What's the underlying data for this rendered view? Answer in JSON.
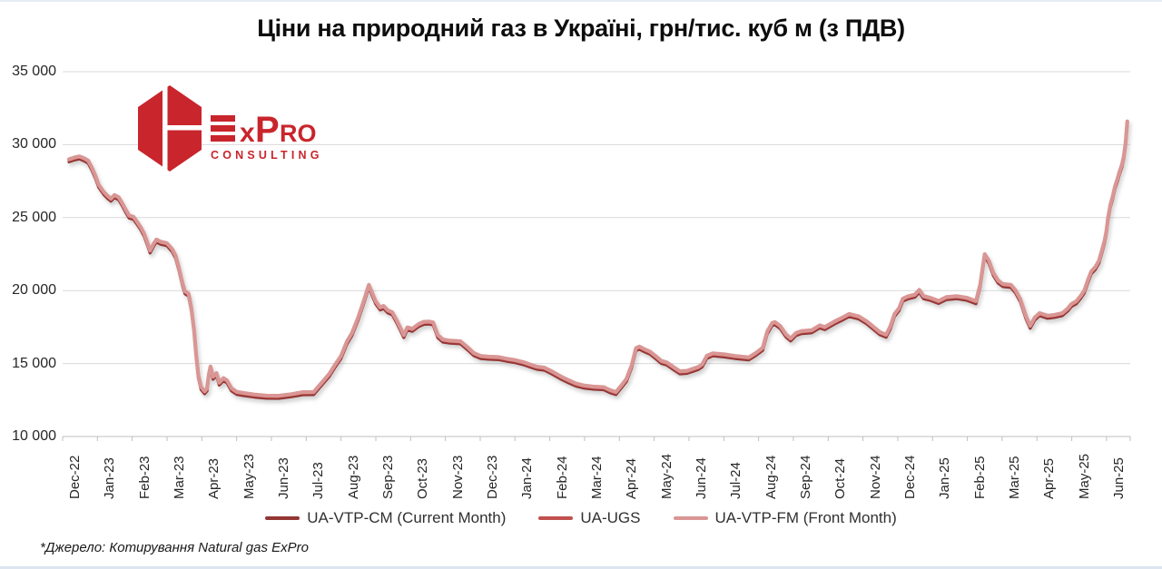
{
  "title": "Ціни на природний газ в Україні, грн/тис. куб м (з ПДВ)",
  "logo": {
    "brand": "ExPro",
    "brand_parts": {
      "x": "x",
      "p": "P",
      "ro": "RO"
    },
    "sub": "CONSULTING",
    "color": "#C9252C"
  },
  "footer": {
    "source_note": "*Джерело: Котирування Natural gas ExPro"
  },
  "legend": [
    {
      "label": "UA-VTP-CM (Current Month)",
      "color": "#943634"
    },
    {
      "label": "UA-UGS",
      "color": "#C0504D"
    },
    {
      "label": "UA-VTP-FM (Front Month)",
      "color": "#D99694"
    }
  ],
  "chart_data": {
    "type": "line",
    "title": "Ціни на природний газ в Україні, грн/тис. куб м (з ПДВ)",
    "xlabel": "",
    "ylabel": "грн/тис. куб м (з ПДВ)",
    "grid": "horizontal",
    "legend_position": "bottom",
    "ylim": [
      10000,
      35000
    ],
    "y_ticks": [
      10000,
      15000,
      20000,
      25000,
      30000,
      35000
    ],
    "y_tick_labels": [
      "10 000",
      "15 000",
      "20 000",
      "25 000",
      "30 000",
      "35 000"
    ],
    "x_tick_labels": [
      "Dec-22",
      "Jan-23",
      "Feb-23",
      "Mar-23",
      "Apr-23",
      "May-23",
      "Jun-23",
      "Jul-23",
      "Aug-23",
      "Sep-23",
      "Oct-23",
      "Nov-23",
      "Dec-23",
      "Jan-24",
      "Feb-24",
      "Mar-24",
      "Apr-24",
      "May-24",
      "Jun-24",
      "Jul-24",
      "Aug-24",
      "Sep-24",
      "Oct-24",
      "Nov-24",
      "Dec-24",
      "Jan-25",
      "Feb-25",
      "Mar-25",
      "Apr-25",
      "May-25",
      "Jun-25"
    ],
    "x_unit": "months since Dec-2022 (daily quotes)",
    "series": [
      {
        "name": "UA-VTP-CM (Current Month)",
        "color": "#943634",
        "stroke_width": 3.2,
        "value_offset": -180,
        "note": "nearly identical to UA-VTP-FM, drawn beneath it"
      },
      {
        "name": "UA-UGS",
        "color": "#C0504D",
        "stroke_width": 3.2,
        "value_offset": -60,
        "note": "nearly identical to UA-VTP-FM, drawn beneath it"
      },
      {
        "name": "UA-VTP-FM (Front Month)",
        "color": "#D99694",
        "stroke_width": 4.2,
        "value_offset": 0
      }
    ],
    "points": [
      [
        0,
        29000
      ],
      [
        0.15,
        29120
      ],
      [
        0.3,
        29200
      ],
      [
        0.45,
        29050
      ],
      [
        0.55,
        28900
      ],
      [
        0.65,
        28450
      ],
      [
        0.75,
        27900
      ],
      [
        0.85,
        27250
      ],
      [
        1.0,
        26750
      ],
      [
        1.1,
        26500
      ],
      [
        1.2,
        26300
      ],
      [
        1.3,
        26550
      ],
      [
        1.42,
        26400
      ],
      [
        1.52,
        26000
      ],
      [
        1.62,
        25550
      ],
      [
        1.72,
        25150
      ],
      [
        1.85,
        25050
      ],
      [
        1.95,
        24700
      ],
      [
        2.05,
        24350
      ],
      [
        2.15,
        23900
      ],
      [
        2.25,
        23250
      ],
      [
        2.32,
        22750
      ],
      [
        2.42,
        23200
      ],
      [
        2.5,
        23500
      ],
      [
        2.62,
        23350
      ],
      [
        2.8,
        23250
      ],
      [
        2.95,
        22850
      ],
      [
        3.05,
        22400
      ],
      [
        3.15,
        21500
      ],
      [
        3.25,
        20500
      ],
      [
        3.32,
        19950
      ],
      [
        3.42,
        19800
      ],
      [
        3.5,
        18800
      ],
      [
        3.58,
        17300
      ],
      [
        3.64,
        15600
      ],
      [
        3.7,
        14200
      ],
      [
        3.78,
        13400
      ],
      [
        3.88,
        13100
      ],
      [
        3.95,
        13300
      ],
      [
        4.0,
        14250
      ],
      [
        4.05,
        14800
      ],
      [
        4.12,
        14100
      ],
      [
        4.22,
        14350
      ],
      [
        4.3,
        13700
      ],
      [
        4.42,
        14000
      ],
      [
        4.52,
        13850
      ],
      [
        4.65,
        13300
      ],
      [
        4.8,
        13060
      ],
      [
        5.0,
        12980
      ],
      [
        5.3,
        12880
      ],
      [
        5.65,
        12800
      ],
      [
        6.0,
        12790
      ],
      [
        6.35,
        12900
      ],
      [
        6.7,
        13040
      ],
      [
        7.0,
        13050
      ],
      [
        7.2,
        13600
      ],
      [
        7.45,
        14300
      ],
      [
        7.62,
        14950
      ],
      [
        7.78,
        15500
      ],
      [
        7.95,
        16500
      ],
      [
        8.1,
        17100
      ],
      [
        8.28,
        18200
      ],
      [
        8.45,
        19400
      ],
      [
        8.58,
        20400
      ],
      [
        8.68,
        19800
      ],
      [
        8.78,
        19250
      ],
      [
        8.9,
        18850
      ],
      [
        9.0,
        18950
      ],
      [
        9.12,
        18650
      ],
      [
        9.25,
        18520
      ],
      [
        9.38,
        17950
      ],
      [
        9.48,
        17450
      ],
      [
        9.58,
        16950
      ],
      [
        9.68,
        17480
      ],
      [
        9.82,
        17380
      ],
      [
        10.0,
        17700
      ],
      [
        10.15,
        17860
      ],
      [
        10.3,
        17880
      ],
      [
        10.42,
        17820
      ],
      [
        10.55,
        16950
      ],
      [
        10.7,
        16650
      ],
      [
        10.9,
        16570
      ],
      [
        11.2,
        16530
      ],
      [
        11.42,
        16080
      ],
      [
        11.58,
        15720
      ],
      [
        11.78,
        15520
      ],
      [
        12.0,
        15470
      ],
      [
        12.3,
        15440
      ],
      [
        12.55,
        15320
      ],
      [
        12.75,
        15240
      ],
      [
        13.0,
        15100
      ],
      [
        13.2,
        14930
      ],
      [
        13.38,
        14790
      ],
      [
        13.6,
        14720
      ],
      [
        13.85,
        14420
      ],
      [
        14.1,
        14080
      ],
      [
        14.3,
        13850
      ],
      [
        14.5,
        13640
      ],
      [
        14.72,
        13500
      ],
      [
        15.0,
        13420
      ],
      [
        15.3,
        13380
      ],
      [
        15.48,
        13180
      ],
      [
        15.65,
        13050
      ],
      [
        15.82,
        13550
      ],
      [
        15.95,
        13950
      ],
      [
        16.1,
        14900
      ],
      [
        16.22,
        16050
      ],
      [
        16.32,
        16160
      ],
      [
        16.45,
        16000
      ],
      [
        16.62,
        15820
      ],
      [
        16.8,
        15480
      ],
      [
        16.95,
        15180
      ],
      [
        17.1,
        15080
      ],
      [
        17.32,
        14720
      ],
      [
        17.48,
        14470
      ],
      [
        17.68,
        14500
      ],
      [
        17.85,
        14640
      ],
      [
        18.0,
        14760
      ],
      [
        18.12,
        14950
      ],
      [
        18.25,
        15530
      ],
      [
        18.42,
        15700
      ],
      [
        18.75,
        15630
      ],
      [
        19.05,
        15520
      ],
      [
        19.45,
        15420
      ],
      [
        19.65,
        15720
      ],
      [
        19.85,
        16080
      ],
      [
        19.98,
        17200
      ],
      [
        20.12,
        17780
      ],
      [
        20.2,
        17840
      ],
      [
        20.35,
        17570
      ],
      [
        20.52,
        16980
      ],
      [
        20.65,
        16720
      ],
      [
        20.8,
        17090
      ],
      [
        20.95,
        17220
      ],
      [
        21.25,
        17280
      ],
      [
        21.48,
        17620
      ],
      [
        21.62,
        17500
      ],
      [
        21.9,
        17880
      ],
      [
        22.15,
        18180
      ],
      [
        22.32,
        18400
      ],
      [
        22.6,
        18230
      ],
      [
        22.82,
        17900
      ],
      [
        23.0,
        17550
      ],
      [
        23.2,
        17150
      ],
      [
        23.38,
        16980
      ],
      [
        23.5,
        17550
      ],
      [
        23.62,
        18400
      ],
      [
        23.75,
        18800
      ],
      [
        23.86,
        19450
      ],
      [
        24.0,
        19600
      ],
      [
        24.2,
        19720
      ],
      [
        24.33,
        20050
      ],
      [
        24.45,
        19620
      ],
      [
        24.65,
        19500
      ],
      [
        24.88,
        19290
      ],
      [
        25.1,
        19550
      ],
      [
        25.4,
        19620
      ],
      [
        25.7,
        19500
      ],
      [
        25.95,
        19280
      ],
      [
        26.07,
        20400
      ],
      [
        26.2,
        22500
      ],
      [
        26.32,
        22050
      ],
      [
        26.45,
        21200
      ],
      [
        26.58,
        20700
      ],
      [
        26.72,
        20450
      ],
      [
        26.95,
        20390
      ],
      [
        27.08,
        20020
      ],
      [
        27.22,
        19400
      ],
      [
        27.38,
        18250
      ],
      [
        27.5,
        17590
      ],
      [
        27.63,
        18150
      ],
      [
        27.77,
        18460
      ],
      [
        28.0,
        18280
      ],
      [
        28.2,
        18340
      ],
      [
        28.42,
        18460
      ],
      [
        28.58,
        18780
      ],
      [
        28.68,
        19080
      ],
      [
        28.82,
        19270
      ],
      [
        28.95,
        19650
      ],
      [
        29.05,
        20000
      ],
      [
        29.15,
        20700
      ],
      [
        29.25,
        21320
      ],
      [
        29.37,
        21630
      ],
      [
        29.47,
        22060
      ],
      [
        29.56,
        22810
      ],
      [
        29.63,
        23430
      ],
      [
        29.68,
        24050
      ],
      [
        29.73,
        24990
      ],
      [
        29.8,
        25920
      ],
      [
        29.86,
        26420
      ],
      [
        29.93,
        27160
      ],
      [
        30.0,
        27660
      ],
      [
        30.06,
        28160
      ],
      [
        30.13,
        28650
      ],
      [
        30.18,
        29200
      ],
      [
        30.23,
        30100
      ],
      [
        30.28,
        31600
      ]
    ]
  }
}
